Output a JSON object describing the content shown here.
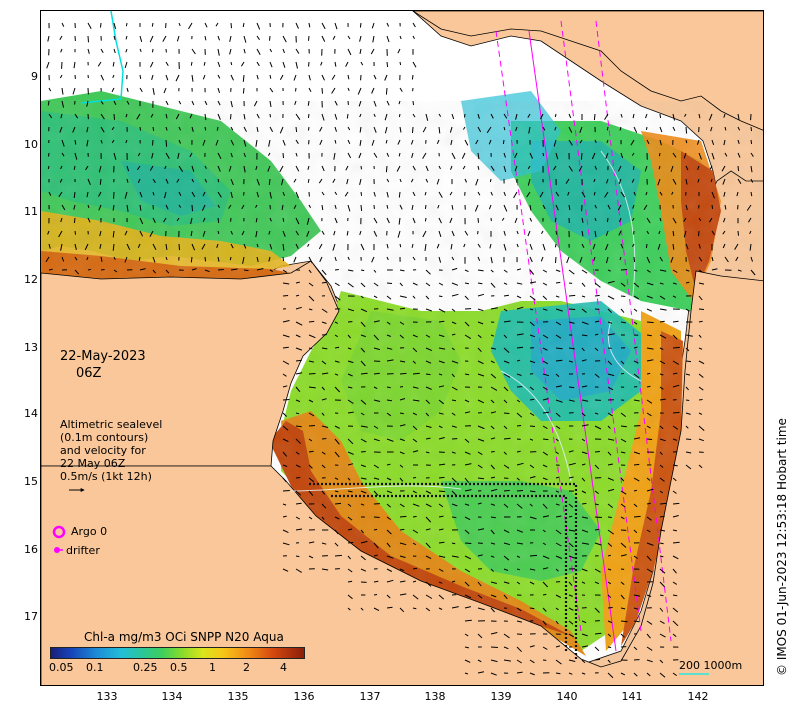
{
  "map": {
    "y_ticks": [
      "9",
      "10",
      "11",
      "12",
      "13",
      "14",
      "15",
      "16",
      "17"
    ],
    "x_ticks": [
      "133",
      "134",
      "135",
      "136",
      "137",
      "138",
      "139",
      "140",
      "141",
      "142"
    ],
    "date_line1": "22-May-2023",
    "date_line2": "06Z",
    "legend_text": [
      "Altimetric sealevel",
      "(0.1m contours)",
      "and velocity for",
      "22 May 06Z",
      "0.5m/s (1kt 12h)"
    ],
    "argo_label": "Argo 0",
    "drifter_label": "drifter",
    "colorbar_title": "Chl-a mg/m3 OCi SNPP N20 Aqua",
    "colorbar_ticks": [
      "0.05",
      "0.1",
      "0.25",
      "0.5",
      "1",
      "2",
      "4"
    ],
    "scale_label": "200  1000m",
    "credit": "© IMOS 01-Jun-2023 12:53:18 Hobart time",
    "colors": {
      "land": "#f9c79a",
      "argo": "#ff00ff",
      "current_arrows": "#000000"
    },
    "layers": [
      "land-mask",
      "chlorophyll-field",
      "velocity-arrows",
      "satellite-tracks",
      "drifter-track"
    ]
  }
}
